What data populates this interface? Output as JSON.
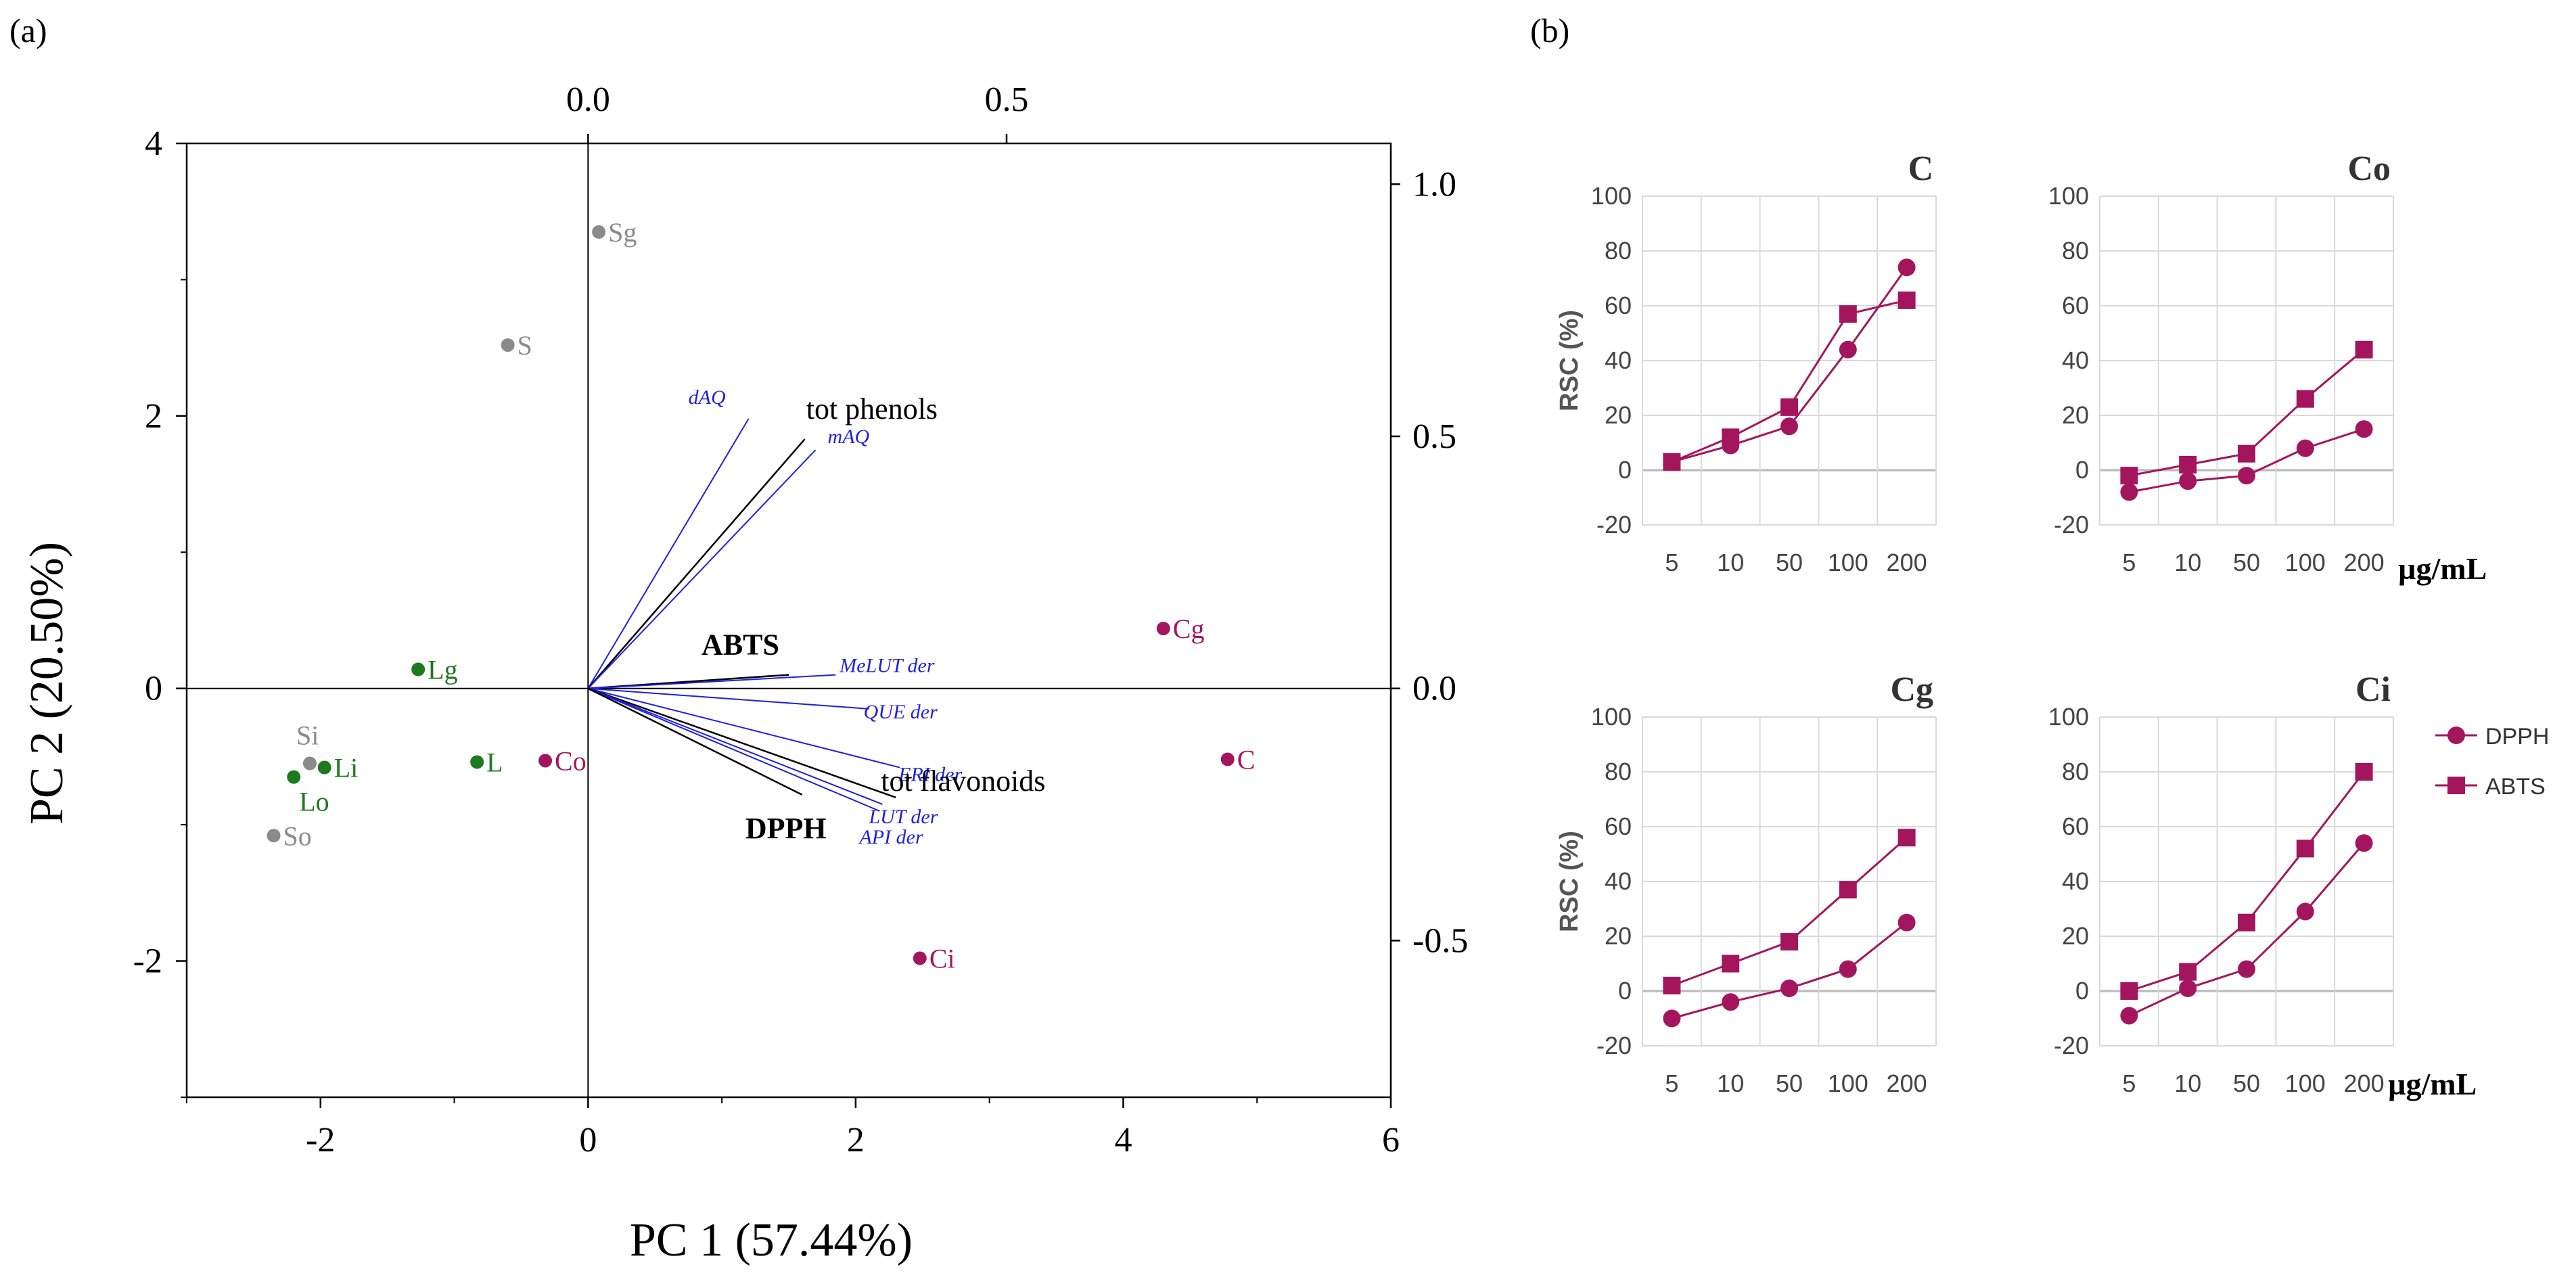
{
  "colors": {
    "black": "#000000",
    "blue": "#1f1fe0",
    "magenta": "#a3165e",
    "green": "#1e7a1e",
    "gray": "#8a8a8a",
    "grid": "#d9d9d9"
  },
  "panel_labels": {
    "a": "(a)",
    "b": "(b)"
  },
  "units_label": "µg/mL",
  "chart_data": [
    {
      "id": "biplot",
      "type": "scatter",
      "title": "",
      "xlabel": "PC 1 (57.44%)",
      "ylabel": "PC 2 (20.50%)",
      "xlim": [
        -3,
        6
      ],
      "ylim": [
        -3,
        4
      ],
      "x_ticks": [
        -2,
        0,
        2,
        4,
        6
      ],
      "x_tick_labels": [
        "-2",
        "0",
        "2",
        "4",
        "6"
      ],
      "y_ticks": [
        -2,
        0,
        2,
        4
      ],
      "y_tick_labels": [
        "-2",
        "0",
        "2",
        "4"
      ],
      "top_axis": {
        "ticks": [
          0.0,
          0.5
        ],
        "tick_labels": [
          "0.0",
          "0.5"
        ]
      },
      "right_axis": {
        "ticks": [
          -0.5,
          0.0,
          0.5,
          1.0
        ],
        "tick_labels": [
          "-0.5",
          "0.0",
          "0.5",
          "1.0"
        ]
      },
      "points": [
        {
          "label": "Sg",
          "x": 0.08,
          "y": 3.35,
          "group": "gray"
        },
        {
          "label": "S",
          "x": -0.6,
          "y": 2.52,
          "group": "gray"
        },
        {
          "label": "Lg",
          "x": -1.27,
          "y": 0.14,
          "group": "green"
        },
        {
          "label": "Si",
          "x": -2.08,
          "y": -0.55,
          "group": "gray"
        },
        {
          "label": "Li",
          "x": -1.97,
          "y": -0.58,
          "group": "green"
        },
        {
          "label": "Lo",
          "x": -2.2,
          "y": -0.65,
          "group": "green"
        },
        {
          "label": "L",
          "x": -0.83,
          "y": -0.54,
          "group": "green"
        },
        {
          "label": "Co",
          "x": -0.32,
          "y": -0.53,
          "group": "magenta"
        },
        {
          "label": "So",
          "x": -2.35,
          "y": -1.08,
          "group": "gray"
        },
        {
          "label": "Cg",
          "x": 4.3,
          "y": 0.44,
          "group": "magenta"
        },
        {
          "label": "C",
          "x": 4.78,
          "y": -0.52,
          "group": "magenta"
        },
        {
          "label": "Ci",
          "x": 2.48,
          "y": -1.98,
          "group": "magenta"
        }
      ],
      "loadings": [
        {
          "label": "dAQ",
          "x": 1.2,
          "y": 1.98,
          "color": "blue",
          "italic": true
        },
        {
          "label": "tot phenols",
          "x": 1.62,
          "y": 1.83,
          "color": "black",
          "italic": false
        },
        {
          "label": "mAQ",
          "x": 1.7,
          "y": 1.75,
          "color": "blue",
          "italic": true
        },
        {
          "label": "ABTS",
          "x": 1.5,
          "y": 0.1,
          "color": "black",
          "italic": false,
          "bold": true
        },
        {
          "label": "MeLUT der",
          "x": 1.85,
          "y": 0.1,
          "color": "blue",
          "italic": true
        },
        {
          "label": "QUE der",
          "x": 2.1,
          "y": -0.15,
          "color": "blue",
          "italic": true
        },
        {
          "label": "ERI der",
          "x": 2.33,
          "y": -0.58,
          "color": "blue",
          "italic": true
        },
        {
          "label": "tot flavonoids",
          "x": 2.3,
          "y": -0.8,
          "color": "black",
          "italic": false
        },
        {
          "label": "LUT der",
          "x": 2.2,
          "y": -0.85,
          "color": "blue",
          "italic": true
        },
        {
          "label": "API der",
          "x": 2.18,
          "y": -0.9,
          "color": "blue",
          "italic": true
        },
        {
          "label": "DPPH",
          "x": 1.6,
          "y": -0.78,
          "color": "black",
          "italic": false,
          "bold": true
        }
      ]
    },
    {
      "id": "rsc-C",
      "type": "line",
      "title": "C",
      "ylabel": "RSC (%)",
      "categories": [
        "5",
        "10",
        "50",
        "100",
        "200"
      ],
      "ylim": [
        -20,
        100
      ],
      "y_ticks": [
        -20,
        0,
        20,
        40,
        60,
        80,
        100
      ],
      "series": [
        {
          "name": "DPPH",
          "values": [
            3,
            9,
            16,
            44,
            74
          ]
        },
        {
          "name": "ABTS",
          "values": [
            3,
            12,
            23,
            57,
            62
          ]
        }
      ]
    },
    {
      "id": "rsc-Co",
      "type": "line",
      "title": "Co",
      "ylabel": "",
      "categories": [
        "5",
        "10",
        "50",
        "100",
        "200"
      ],
      "ylim": [
        -20,
        100
      ],
      "y_ticks": [
        -20,
        0,
        20,
        40,
        60,
        80,
        100
      ],
      "series": [
        {
          "name": "DPPH",
          "values": [
            -8,
            -4,
            -2,
            8,
            15
          ]
        },
        {
          "name": "ABTS",
          "values": [
            -2,
            2,
            6,
            26,
            44
          ]
        }
      ]
    },
    {
      "id": "rsc-Cg",
      "type": "line",
      "title": "Cg",
      "ylabel": "RSC (%)",
      "categories": [
        "5",
        "10",
        "50",
        "100",
        "200"
      ],
      "ylim": [
        -20,
        100
      ],
      "y_ticks": [
        -20,
        0,
        20,
        40,
        60,
        80,
        100
      ],
      "series": [
        {
          "name": "DPPH",
          "values": [
            -10,
            -4,
            1,
            8,
            25
          ]
        },
        {
          "name": "ABTS",
          "values": [
            2,
            10,
            18,
            37,
            56
          ]
        }
      ]
    },
    {
      "id": "rsc-Ci",
      "type": "line",
      "title": "Ci",
      "ylabel": "",
      "categories": [
        "5",
        "10",
        "50",
        "100",
        "200"
      ],
      "ylim": [
        -20,
        100
      ],
      "y_ticks": [
        -20,
        0,
        20,
        40,
        60,
        80,
        100
      ],
      "series": [
        {
          "name": "DPPH",
          "values": [
            -9,
            1,
            8,
            29,
            54
          ]
        },
        {
          "name": "ABTS",
          "values": [
            0,
            7,
            25,
            52,
            80
          ]
        }
      ]
    }
  ],
  "legend": {
    "entries": [
      "DPPH",
      "ABTS"
    ],
    "placement": "right"
  }
}
